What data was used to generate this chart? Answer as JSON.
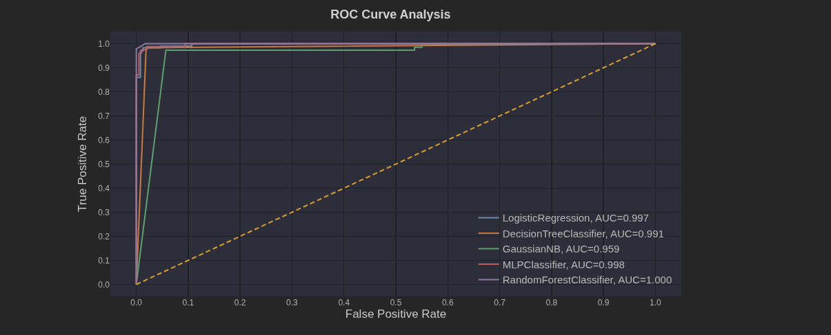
{
  "chart_data": {
    "type": "line",
    "title": "ROC Curve Analysis",
    "xlabel": "False Positive Rate",
    "ylabel": "True Positive Rate",
    "xlim": [
      -0.05,
      1.05
    ],
    "ylim": [
      -0.05,
      1.05
    ],
    "xticks": [
      {
        "value": 0,
        "label": "0.0"
      },
      {
        "value": 0.1,
        "label": "0.1"
      },
      {
        "value": 0.2,
        "label": "0.2"
      },
      {
        "value": 0.3,
        "label": "0.3"
      },
      {
        "value": 0.4,
        "label": "0.4"
      },
      {
        "value": 0.5,
        "label": "0.5"
      },
      {
        "value": 0.6,
        "label": "0.6"
      },
      {
        "value": 0.7,
        "label": "0.7"
      },
      {
        "value": 0.8,
        "label": "0.8"
      },
      {
        "value": 0.9,
        "label": "0.9"
      },
      {
        "value": 1,
        "label": "1.0"
      }
    ],
    "yticks": [
      {
        "value": 0,
        "label": "0.0"
      },
      {
        "value": 0.1,
        "label": "0.1"
      },
      {
        "value": 0.2,
        "label": "0.2"
      },
      {
        "value": 0.3,
        "label": "0.3"
      },
      {
        "value": 0.4,
        "label": "0.4"
      },
      {
        "value": 0.5,
        "label": "0.5"
      },
      {
        "value": 0.6,
        "label": "0.6"
      },
      {
        "value": 0.7,
        "label": "0.7"
      },
      {
        "value": 0.8,
        "label": "0.8"
      },
      {
        "value": 0.9,
        "label": "0.9"
      },
      {
        "value": 1,
        "label": "1.0"
      }
    ],
    "grid": true,
    "legend": "bottom right",
    "line_style": "solid",
    "series": [
      {
        "name": "LogisticRegression, AUC=0.997",
        "color": "#6b8ab0",
        "x": [
          0,
          0,
          0.008,
          0.008,
          0.013,
          0.013,
          0.046,
          0.046,
          0.107,
          0.107,
          1
        ],
        "values": [
          0,
          0.86,
          0.86,
          0.97,
          0.97,
          0.983,
          0.983,
          0.99,
          0.99,
          1,
          1
        ]
      },
      {
        "name": "DecisionTreeClassifier, AUC=0.991",
        "color": "#c87a45",
        "x": [
          0,
          0.019,
          1
        ],
        "values": [
          0,
          0.983,
          1
        ]
      },
      {
        "name": "GaussianNB, AUC=0.959",
        "color": "#5f9e6e",
        "x": [
          0,
          0.057,
          0.536,
          0.536,
          0.55,
          0.55,
          1
        ],
        "values": [
          0,
          0.973,
          0.973,
          0.985,
          0.985,
          1,
          1
        ]
      },
      {
        "name": "MLPClassifier, AUC=0.998",
        "color": "#b86060",
        "x": [
          0,
          0,
          0.005,
          0.005,
          0.01,
          0.01,
          0.02,
          0.02,
          0.094,
          0.094,
          1
        ],
        "values": [
          0,
          0.87,
          0.87,
          0.96,
          0.96,
          0.975,
          0.975,
          0.988,
          0.988,
          1,
          1
        ]
      },
      {
        "name": "RandomForestClassifier, AUC=1.000",
        "color": "#8a7aa3",
        "x": [
          0,
          0,
          0.011,
          0.017,
          1
        ],
        "values": [
          0,
          0.978,
          0.992,
          1,
          1
        ]
      },
      {
        "color": "#d9a030",
        "line_style": "dashed",
        "x": [
          0,
          1
        ],
        "values": [
          0,
          1
        ]
      }
    ]
  }
}
